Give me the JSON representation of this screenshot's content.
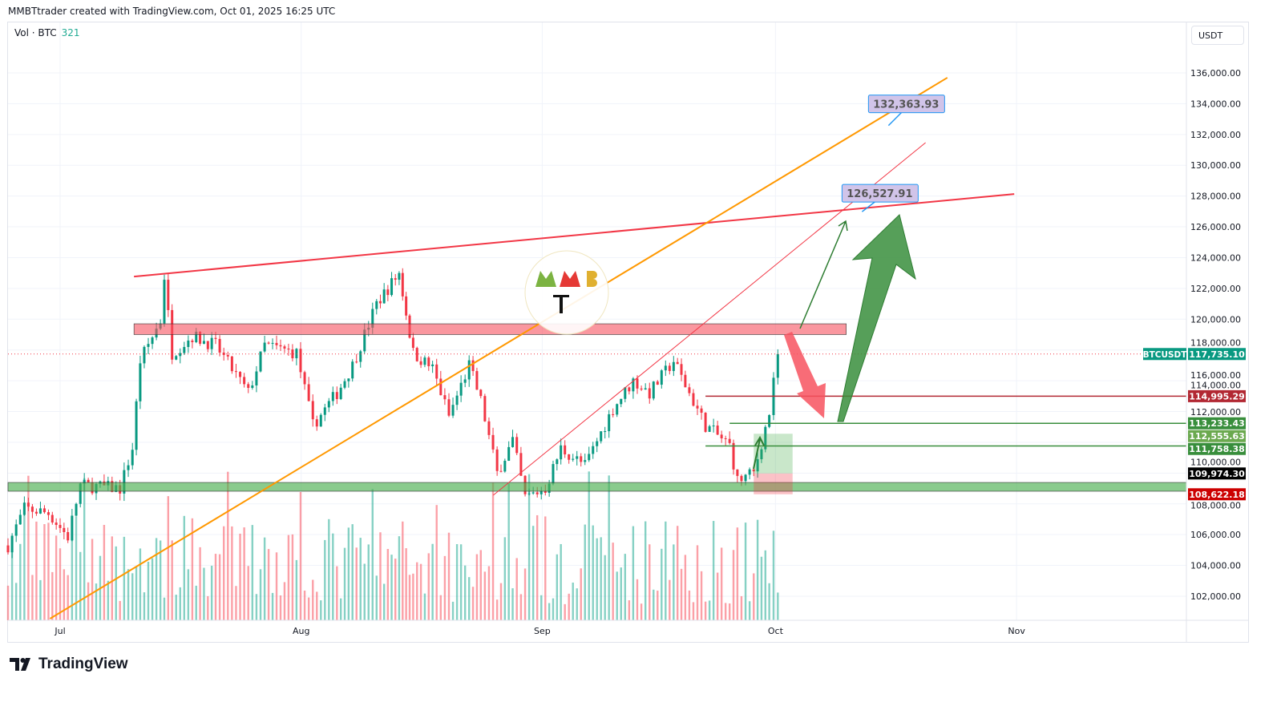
{
  "header": {
    "attribution": "MMBTtrader created with TradingView.com, Oct 01, 2025 16:25 UTC"
  },
  "legend": {
    "label": "Vol · BTC",
    "value": "321"
  },
  "currency_button": "USDT",
  "footer": {
    "brand": "TradingView"
  },
  "logo": {
    "text": "MMB Trader"
  },
  "colors": {
    "up": "#089981",
    "down": "#f23645",
    "resistance": "#f23645",
    "trend": "#ff9800",
    "support_zone": "#4caf50"
  },
  "chart_data": {
    "type": "candlestick",
    "symbol": "BTCUSDT",
    "title": "BTCUSDT",
    "ylim": [
      100000,
      138000
    ],
    "y_ticks": [
      "102,000.00",
      "104,000.00",
      "106,000.00",
      "108,000.00",
      "110,000.00",
      "112,000.00",
      "114,000.00",
      "116,000.00",
      "118,000.00",
      "120,000.00",
      "122,000.00",
      "124,000.00",
      "126,000.00",
      "128,000.00",
      "130,000.00",
      "132,000.00",
      "134,000.00",
      "136,000.00"
    ],
    "x_labels": [
      {
        "label": "Jul",
        "day": 0
      },
      {
        "label": "Aug",
        "day": 31
      },
      {
        "label": "Sep",
        "day": 62
      },
      {
        "label": "Oct",
        "day": 92
      },
      {
        "label": "Nov",
        "day": 123
      }
    ],
    "price_path": [
      [
        -6.7,
        105300
      ],
      [
        -4.6,
        107700
      ],
      [
        -1.5,
        107400
      ],
      [
        1,
        105850
      ],
      [
        2.6,
        109200
      ],
      [
        7.7,
        109000
      ],
      [
        9.3,
        111600
      ],
      [
        10.3,
        117300
      ],
      [
        12.9,
        119900
      ],
      [
        13.4,
        122800
      ],
      [
        14.4,
        117800
      ],
      [
        17,
        118900
      ],
      [
        20,
        118300
      ],
      [
        24.2,
        115200
      ],
      [
        26.3,
        118300
      ],
      [
        30.4,
        117800
      ],
      [
        32.5,
        113100
      ],
      [
        35.6,
        115200
      ],
      [
        37.6,
        117000
      ],
      [
        40.7,
        121000
      ],
      [
        43.6,
        123000
      ],
      [
        45.4,
        117800
      ],
      [
        47.9,
        116800
      ],
      [
        50,
        113700
      ],
      [
        52.6,
        117000
      ],
      [
        54.1,
        114700
      ],
      [
        56.2,
        110000
      ],
      [
        58.2,
        112100
      ],
      [
        59.8,
        108400
      ],
      [
        62.4,
        109000
      ],
      [
        64.4,
        111600
      ],
      [
        67.5,
        110500
      ],
      [
        71.1,
        114200
      ],
      [
        73.7,
        116000
      ],
      [
        75.8,
        115200
      ],
      [
        78.9,
        117300
      ],
      [
        80.4,
        115700
      ],
      [
        83,
        113100
      ],
      [
        86.1,
        111800
      ],
      [
        87.1,
        109500
      ],
      [
        89.2,
        110000
      ],
      [
        91.2,
        113900
      ],
      [
        92.3,
        117735
      ]
    ],
    "last_price": {
      "symbol_tag": "BTCUSDT",
      "value": "117,735.10",
      "price": 117735.1
    },
    "price_tags": [
      {
        "value": "114,995.29",
        "price": 114995.29,
        "color": "#b22833"
      },
      {
        "value": "113,233.43",
        "price": 113233.43,
        "color": "#388e3c"
      },
      {
        "value": "112,555.63",
        "price": 112555.63,
        "color": "#6ba94f"
      },
      {
        "value": "111,758.38",
        "price": 111758.38,
        "color": "#388e3c"
      },
      {
        "value": "109,974.30",
        "price": 109974.3,
        "color": "#000000"
      },
      {
        "value": "108,622.18",
        "price": 108622.18,
        "color": "#cc0000"
      }
    ],
    "horizontal_lines": [
      {
        "price": 114995.29,
        "from_day": 83,
        "color": "#b22833"
      },
      {
        "price": 113233.43,
        "from_day": 86.1,
        "color": "#388e3c"
      },
      {
        "price": 111758.38,
        "from_day": 83,
        "color": "#388e3c"
      }
    ],
    "trendlines": [
      {
        "name": "resistance-trendline",
        "p1": [
          9.5,
          122770
        ],
        "p2": [
          122.7,
          128130
        ],
        "color": "#f23645",
        "width": 2
      },
      {
        "name": "orange-trendline",
        "p1": [
          -1.3,
          100540
        ],
        "p2": [
          114.1,
          135690
        ],
        "color": "#ff9800",
        "width": 2
      },
      {
        "name": "thin-red-trendline",
        "p1": [
          55.7,
          108560
        ],
        "p2": [
          111.3,
          131470
        ],
        "color": "#f23645",
        "width": 1
      }
    ],
    "zones": [
      {
        "name": "resistance-zone",
        "day_from": 9.5,
        "day_to": 101.1,
        "price_hi": 119700,
        "price_lo": 119000,
        "fill": "#f7525f",
        "opacity": 0.6
      },
      {
        "name": "support-zone",
        "day_from": -7,
        "day_to": 145,
        "price_hi": 109390,
        "price_lo": 108820,
        "fill": "#4caf50",
        "opacity": 0.65
      }
    ],
    "targets": [
      {
        "value": "132,363.93",
        "day": 108.8,
        "price": 133990
      },
      {
        "value": "126,527.91",
        "day": 105.4,
        "price": 128180
      }
    ],
    "long_position": {
      "day_from": 89.2,
      "day_to": 94.2,
      "target": 112555.63,
      "entry": 109974.3,
      "stop": 108622.18
    }
  }
}
